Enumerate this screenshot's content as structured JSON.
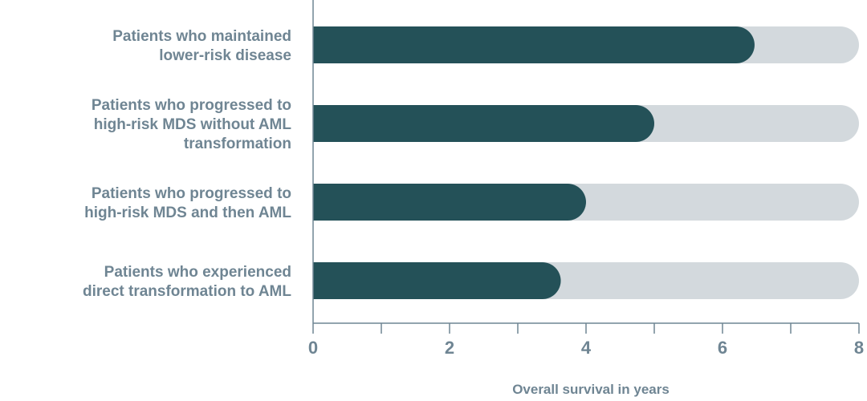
{
  "chart_data": {
    "type": "bar",
    "orientation": "horizontal",
    "categories": [
      [
        "Patients who maintained",
        "lower-risk disease"
      ],
      [
        "Patients who progressed to",
        "high-risk MDS without AML",
        "transformation"
      ],
      [
        "Patients who progressed to",
        "high-risk MDS and then AML"
      ],
      [
        "Patients who experienced",
        "direct transformation to AML"
      ]
    ],
    "values": [
      6.47,
      5.0,
      4.0,
      3.63
    ],
    "xlim": [
      0,
      8
    ],
    "xticks": [
      0,
      2,
      4,
      6,
      8
    ],
    "xlabel": "Overall survival in years",
    "ylabel": "",
    "title": "",
    "grid": false,
    "colors": {
      "bar": "#245158",
      "track": "#d3d9dd",
      "axis": "#6f8593",
      "text": "#6f8593"
    }
  }
}
